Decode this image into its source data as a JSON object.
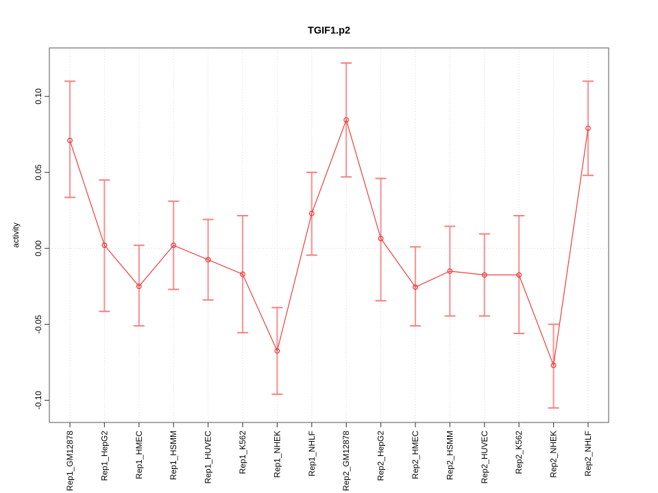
{
  "chart_data": {
    "type": "line",
    "title": "TGIF1.p2",
    "xlabel": "",
    "ylabel": "activity",
    "categories": [
      "Rep1_GM12878",
      "Rep1_HepG2",
      "Rep1_HMEC",
      "Rep1_HSMM",
      "Rep1_HUVEC",
      "Rep1_K562",
      "Rep1_NHEK",
      "Rep1_NHLF",
      "Rep2_GM12878",
      "Rep2_HepG2",
      "Rep2_HMEC",
      "Rep2_HSMM",
      "Rep2_HUVEC",
      "Rep2_K562",
      "Rep2_NHEK",
      "Rep2_NHLF"
    ],
    "series": [
      {
        "name": "activity",
        "values": [
          0.071,
          0.002,
          -0.025,
          0.002,
          -0.0075,
          -0.017,
          -0.0675,
          0.023,
          0.0845,
          0.0065,
          -0.0255,
          -0.015,
          -0.0175,
          -0.0175,
          -0.077,
          0.079
        ],
        "lower": [
          0.0335,
          -0.0415,
          -0.051,
          -0.027,
          -0.034,
          -0.0555,
          -0.096,
          -0.0045,
          0.047,
          -0.0345,
          -0.051,
          -0.0445,
          -0.0445,
          -0.056,
          -0.105,
          0.048
        ],
        "upper": [
          0.11,
          0.045,
          0.002,
          0.031,
          0.019,
          0.0215,
          -0.039,
          0.05,
          0.122,
          0.046,
          0.001,
          0.0145,
          0.0095,
          0.0215,
          -0.05,
          0.11
        ]
      }
    ],
    "yticks": [
      -0.1,
      -0.05,
      0.0,
      0.05,
      0.1
    ],
    "ytick_labels": [
      "-0.10",
      "-0.05",
      "0.00",
      "0.05",
      "0.10"
    ],
    "ylim": [
      -0.1146,
      0.1319
    ],
    "legend": "none",
    "grid": {
      "vertical_dashed_per_category": true,
      "horizontal_dotted_zero_line": true
    },
    "colors": {
      "line": "#ee3b3b",
      "point_stroke": "#ee3b3b",
      "error_bar": "#f59898",
      "error_cap": "#f37f7f",
      "grid_line": "#dedede",
      "zero_line": "#d4d4d4",
      "frame": "#7a7a7a",
      "tick": "#4a4a4a",
      "text": "#000000"
    }
  }
}
